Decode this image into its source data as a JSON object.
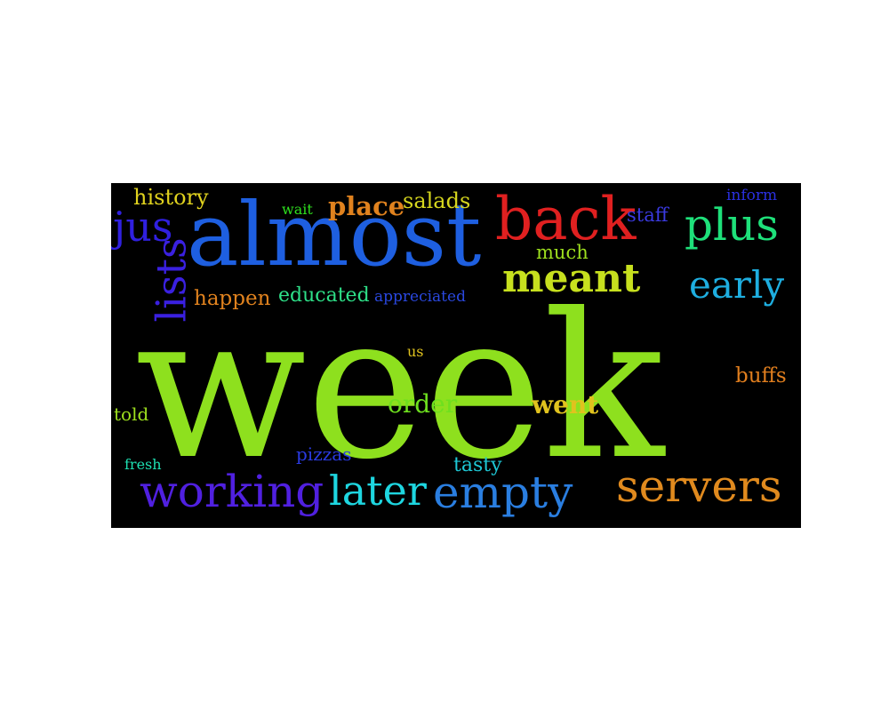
{
  "background": "#000000",
  "words": [
    {
      "id": "week",
      "text": "week",
      "color": "#8ee01e"
    },
    {
      "id": "almost",
      "text": "almost",
      "color": "#1e5fe0"
    },
    {
      "id": "back",
      "text": "back",
      "color": "#e02020"
    },
    {
      "id": "servers",
      "text": "servers",
      "color": "#e08a1e"
    },
    {
      "id": "working",
      "text": "working",
      "color": "#5020e0"
    },
    {
      "id": "empty",
      "text": "empty",
      "color": "#2a7ee0"
    },
    {
      "id": "later",
      "text": "later",
      "color": "#1ed6e0"
    },
    {
      "id": "meant",
      "text": "meant",
      "color": "#c7e01e"
    },
    {
      "id": "plus",
      "text": "plus",
      "color": "#1ee07a"
    },
    {
      "id": "early",
      "text": "early",
      "color": "#1eaee0"
    },
    {
      "id": "jus",
      "text": "jus",
      "color": "#3020e0"
    },
    {
      "id": "lists",
      "text": "lists",
      "color": "#3a20e0"
    },
    {
      "id": "place",
      "text": "place",
      "color": "#e0821e"
    },
    {
      "id": "salads",
      "text": "salads",
      "color": "#d6d61e"
    },
    {
      "id": "history",
      "text": "history",
      "color": "#e0d21e"
    },
    {
      "id": "wait",
      "text": "wait",
      "color": "#2ee01e"
    },
    {
      "id": "happen",
      "text": "happen",
      "color": "#e0821e"
    },
    {
      "id": "educated",
      "text": "educated",
      "color": "#2ee088"
    },
    {
      "id": "appreciated",
      "text": "appreciated",
      "color": "#2a48e0"
    },
    {
      "id": "staff",
      "text": "staff",
      "color": "#3a3ae0"
    },
    {
      "id": "inform",
      "text": "inform",
      "color": "#2a30e0"
    },
    {
      "id": "much",
      "text": "much",
      "color": "#9ee01e"
    },
    {
      "id": "us",
      "text": "us",
      "color": "#e0c21e"
    },
    {
      "id": "order",
      "text": "order",
      "color": "#6ee01e"
    },
    {
      "id": "went",
      "text": "went",
      "color": "#e0c21e"
    },
    {
      "id": "buffs",
      "text": "buffs",
      "color": "#e07e1e"
    },
    {
      "id": "told",
      "text": "told",
      "color": "#9ee01e"
    },
    {
      "id": "fresh",
      "text": "fresh",
      "color": "#1ee0b2"
    },
    {
      "id": "pizzas",
      "text": "pizzas",
      "color": "#2a3ae0"
    },
    {
      "id": "tasty",
      "text": "tasty",
      "color": "#1ec8d6"
    }
  ]
}
